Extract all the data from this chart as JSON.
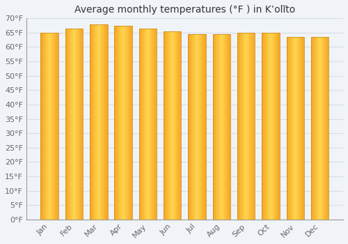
{
  "title": "Average monthly temperatures (°F ) in Kʼolīto",
  "months": [
    "Jan",
    "Feb",
    "Mar",
    "Apr",
    "May",
    "Jun",
    "Jul",
    "Aug",
    "Sep",
    "Oct",
    "Nov",
    "Dec"
  ],
  "values": [
    65,
    66.5,
    68,
    67.5,
    66.5,
    65.5,
    64.5,
    64.5,
    65,
    65,
    63.5,
    63.5
  ],
  "bar_color_left": "#F5A623",
  "bar_color_center": "#FFD54F",
  "ylim": [
    0,
    70
  ],
  "yticks": [
    0,
    5,
    10,
    15,
    20,
    25,
    30,
    35,
    40,
    45,
    50,
    55,
    60,
    65,
    70
  ],
  "ytick_labels": [
    "0°F",
    "5°F",
    "10°F",
    "15°F",
    "20°F",
    "25°F",
    "30°F",
    "35°F",
    "40°F",
    "45°F",
    "50°F",
    "55°F",
    "60°F",
    "65°F",
    "70°F"
  ],
  "background_color": "#f0f4f8",
  "grid_color": "#d8dde6",
  "title_fontsize": 10,
  "tick_fontsize": 8,
  "bar_edge_color": "#C8860A"
}
